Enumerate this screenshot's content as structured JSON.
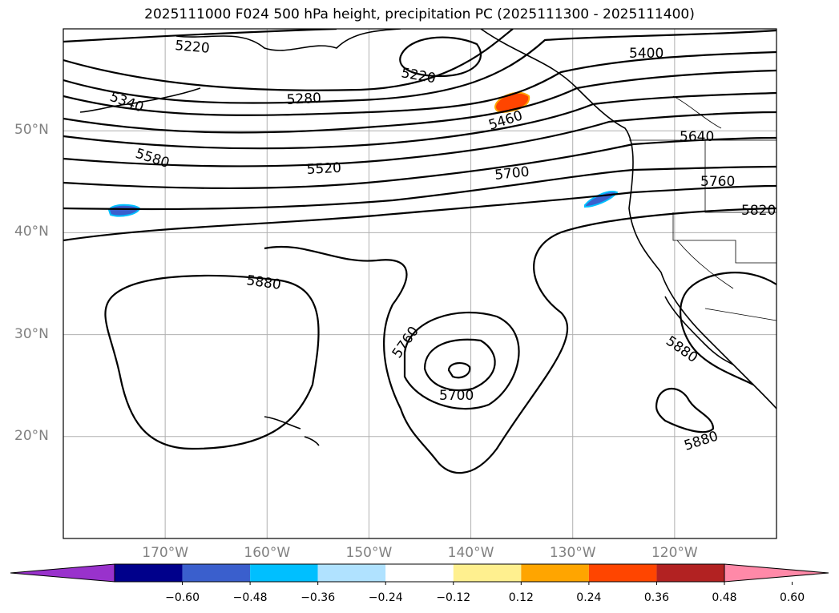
{
  "title": "2025111000 F024 500 hPa height, precipitation PC (2025111300 - 2025111400)",
  "map": {
    "projection": "PlateCarree",
    "extent_lon": [
      -180,
      -110
    ],
    "extent_lat": [
      10,
      60
    ],
    "grid": true,
    "lat_ticks": [
      {
        "value": 20,
        "label": "20°N"
      },
      {
        "value": 30,
        "label": "30°N"
      },
      {
        "value": 40,
        "label": "40°N"
      },
      {
        "value": 50,
        "label": "50°N"
      }
    ],
    "lon_ticks": [
      {
        "value": -170,
        "label": "170°W"
      },
      {
        "value": -160,
        "label": "160°W"
      },
      {
        "value": -150,
        "label": "150°W"
      },
      {
        "value": -140,
        "label": "140°W"
      },
      {
        "value": -130,
        "label": "130°W"
      },
      {
        "value": -120,
        "label": "120°W"
      }
    ]
  },
  "contour_labels": [
    "5220",
    "5220",
    "5400",
    "5340",
    "5280",
    "5460",
    "5640",
    "5580",
    "5520",
    "5700",
    "5760",
    "5820",
    "5880",
    "5760",
    "5700",
    "5880",
    "5880"
  ],
  "colorbar": {
    "colors": [
      "#9932cc",
      "#00008b",
      "#3a5fcd",
      "#00bfff",
      "#b0e2ff",
      "#ffffff",
      "#fff08f",
      "#ffa500",
      "#ff4500",
      "#b22222",
      "#ff89a8"
    ],
    "tick_labels": [
      "−0.60",
      "−0.48",
      "−0.36",
      "−0.24",
      "−0.12",
      "0.12",
      "0.24",
      "0.36",
      "0.48",
      "0.60"
    ]
  }
}
